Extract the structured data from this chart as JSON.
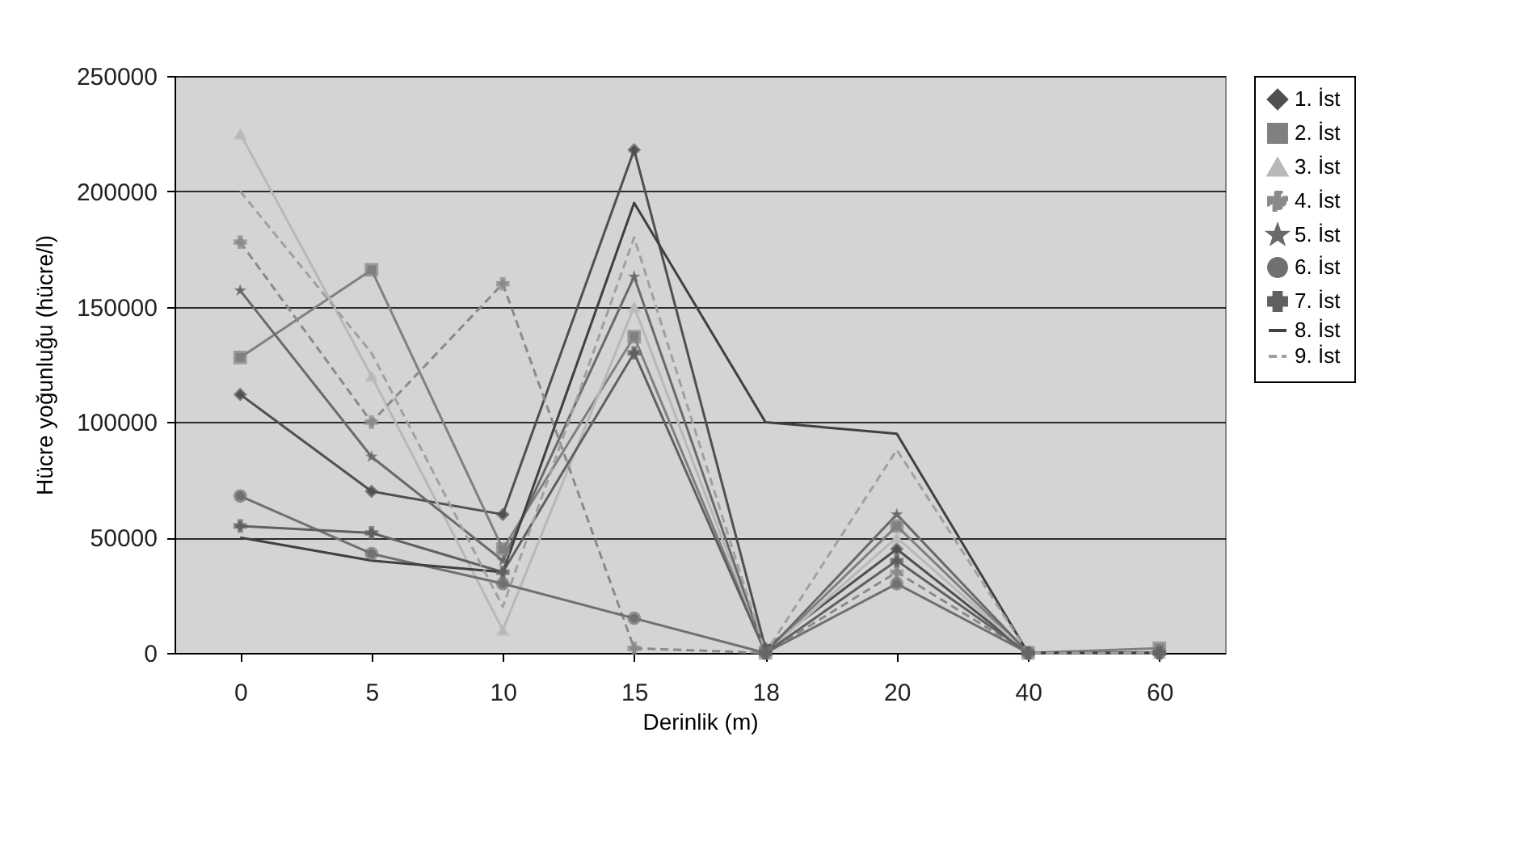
{
  "chart_data": {
    "type": "line",
    "xlabel": "Derinlik (m)",
    "ylabel": "Hücre yoğunluğu (hücre/l)",
    "categories": [
      "0",
      "5",
      "10",
      "15",
      "18",
      "20",
      "40",
      "60"
    ],
    "ylim": [
      0,
      250000
    ],
    "yticks": [
      0,
      50000,
      100000,
      150000,
      200000,
      250000
    ],
    "grid": "y",
    "legend": "right",
    "series": [
      {
        "name": "1. İst",
        "color": "#505050",
        "marker": "diamond",
        "line_style": "solid",
        "values": [
          112000,
          70000,
          60000,
          218000,
          2000,
          45000,
          0,
          0
        ]
      },
      {
        "name": "2. İst",
        "color": "#808080",
        "marker": "square",
        "line_style": "solid",
        "values": [
          128000,
          166000,
          45000,
          137000,
          0,
          55000,
          0,
          2000
        ]
      },
      {
        "name": "3. İst",
        "color": "#b8b8b8",
        "marker": "triangle",
        "line_style": "solid",
        "values": [
          225000,
          120000,
          10000,
          150000,
          0,
          50000,
          0,
          0
        ]
      },
      {
        "name": "4. İst",
        "color": "#8a8a8a",
        "marker": "cross",
        "line_style": "dashed",
        "values": [
          178000,
          100000,
          160000,
          2000,
          0,
          35000,
          0,
          0
        ]
      },
      {
        "name": "5. İst",
        "color": "#6a6a6a",
        "marker": "star",
        "line_style": "solid",
        "values": [
          157000,
          85000,
          40000,
          163000,
          0,
          60000,
          0,
          0
        ]
      },
      {
        "name": "6. İst",
        "color": "#707070",
        "marker": "circle",
        "line_style": "solid",
        "values": [
          68000,
          43000,
          30000,
          15000,
          0,
          30000,
          0,
          0
        ]
      },
      {
        "name": "7. İst",
        "color": "#606060",
        "marker": "cross",
        "line_style": "solid",
        "values": [
          55000,
          52000,
          35000,
          130000,
          0,
          40000,
          0,
          0
        ]
      },
      {
        "name": "8. İst",
        "color": "#404040",
        "marker": "none",
        "line_style": "solid",
        "values": [
          50000,
          40000,
          35000,
          195000,
          100000,
          95000,
          0,
          0
        ]
      },
      {
        "name": "9. İst",
        "color": "#a0a0a0",
        "marker": "none",
        "line_style": "dashed",
        "values": [
          200000,
          130000,
          20000,
          180000,
          0,
          88000,
          0,
          0
        ]
      }
    ]
  }
}
